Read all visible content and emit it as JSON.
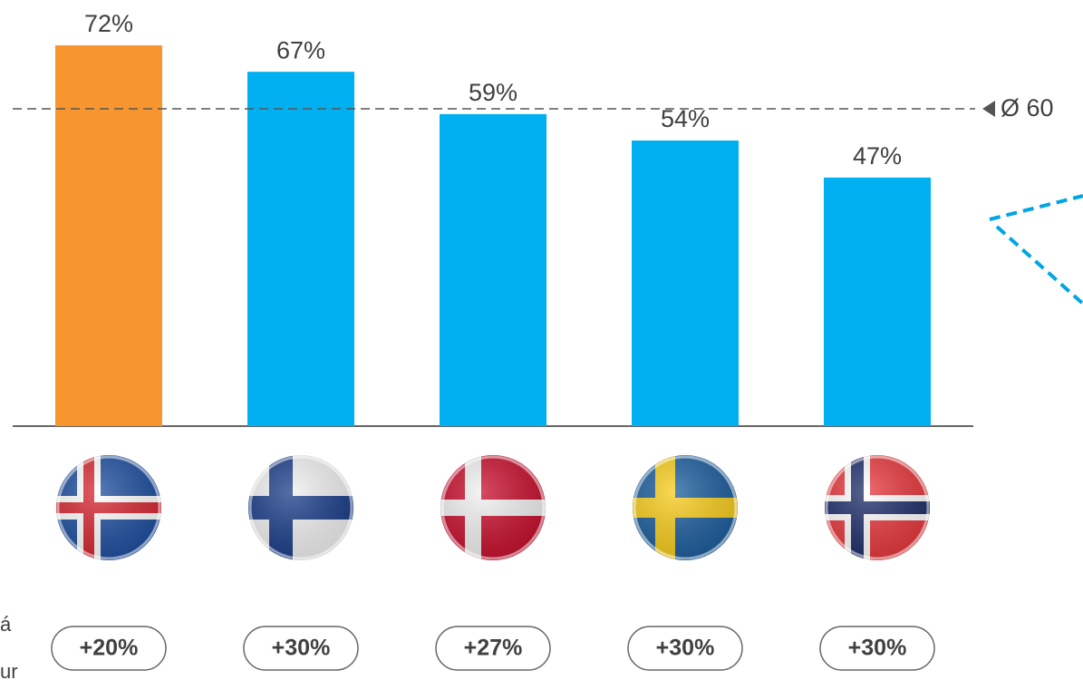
{
  "chart_data": {
    "type": "bar",
    "categories": [
      null,
      null,
      null,
      null,
      null
    ],
    "values": [
      72,
      67,
      59,
      54,
      47
    ],
    "value_labels": [
      "72%",
      "67%",
      "59%",
      "54%",
      "47%"
    ],
    "colors": [
      "#f7962f",
      "#00b0f0",
      "#00b0f0",
      "#00b0f0",
      "#00b0f0"
    ],
    "ylim": [
      0,
      80
    ],
    "average": {
      "value": 60,
      "label": "Ø 60"
    },
    "growth_labels": [
      "+20%",
      "+30%",
      "+27%",
      "+30%",
      "+30%"
    ],
    "side_text": [
      "á",
      "ur"
    ]
  }
}
